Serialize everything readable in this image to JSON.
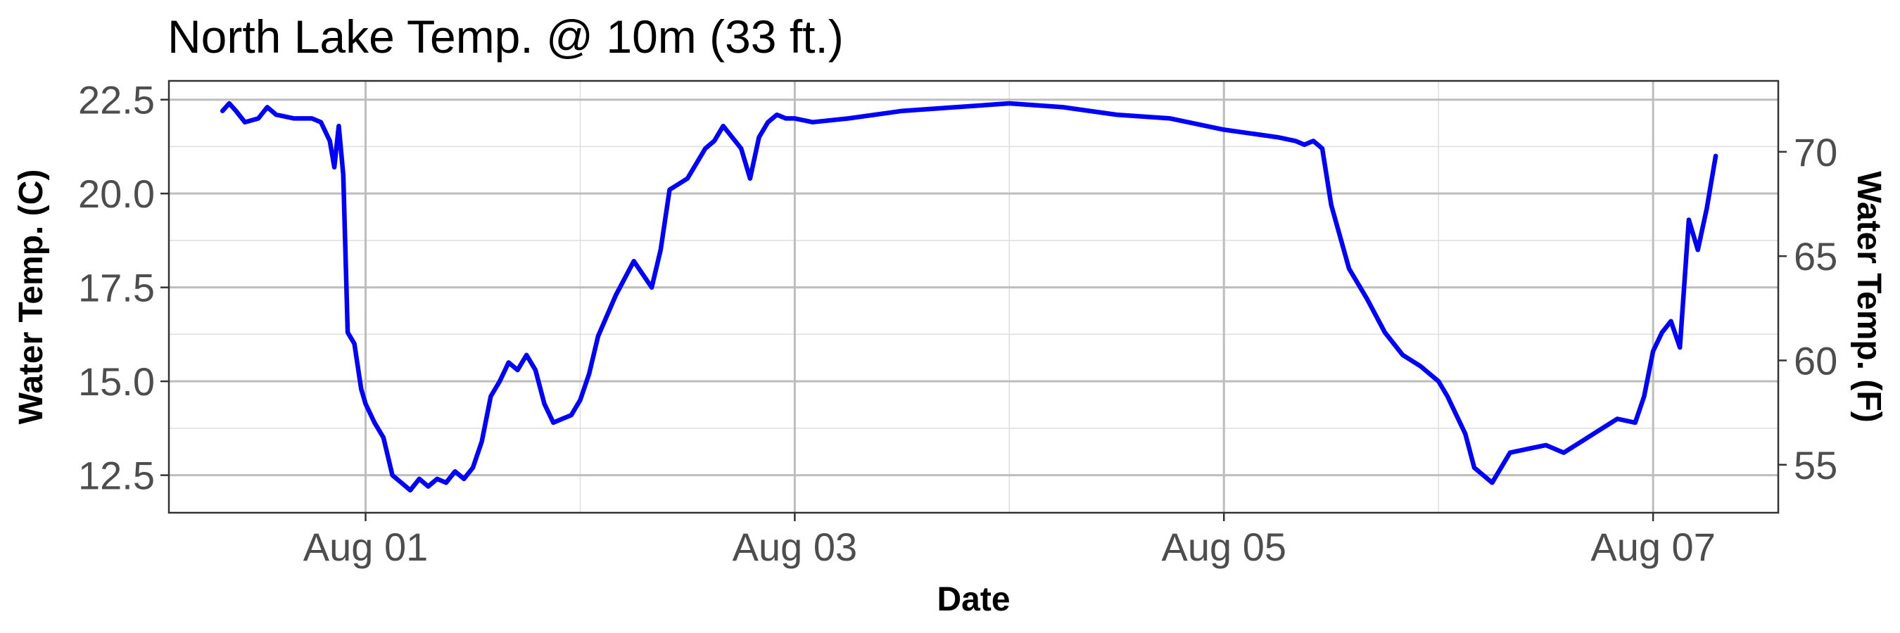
{
  "chart_data": {
    "type": "line",
    "title": "North Lake Temp. @ 10m (33 ft.)",
    "xlabel": "Date",
    "ylabel": "Water Temp. (C)",
    "y2label": "Water Temp. (F)",
    "x_ticks": [
      "Aug 01",
      "Aug 03",
      "Aug 05",
      "Aug 07"
    ],
    "xlim": [
      "2023-07-31T02:00",
      "2023-08-07T14:00"
    ],
    "ylim": [
      11.5,
      23.0
    ],
    "y_ticks": [
      12.5,
      15.0,
      17.5,
      20.0,
      22.5
    ],
    "y2_ticks": [
      55,
      60,
      65,
      70
    ],
    "grid": true,
    "line_color": "#0000ff",
    "series": [
      {
        "x": [
          "2023-07-31T08:00",
          "2023-07-31T08:45",
          "2023-07-31T09:30",
          "2023-07-31T10:30",
          "2023-07-31T12:00",
          "2023-07-31T13:00",
          "2023-07-31T14:00",
          "2023-07-31T16:00",
          "2023-07-31T18:00",
          "2023-07-31T19:00",
          "2023-07-31T20:00",
          "2023-07-31T20:30",
          "2023-07-31T21:00",
          "2023-07-31T21:30",
          "2023-07-31T22:00",
          "2023-07-31T22:45",
          "2023-07-31T23:30",
          "2023-08-01T00:00",
          "2023-08-01T01:00",
          "2023-08-01T02:00",
          "2023-08-01T03:00",
          "2023-08-01T04:00",
          "2023-08-01T05:00",
          "2023-08-01T06:00",
          "2023-08-01T07:00",
          "2023-08-01T08:00",
          "2023-08-01T09:00",
          "2023-08-01T10:00",
          "2023-08-01T11:00",
          "2023-08-01T12:00",
          "2023-08-01T13:00",
          "2023-08-01T14:00",
          "2023-08-01T15:00",
          "2023-08-01T16:00",
          "2023-08-01T17:00",
          "2023-08-01T18:00",
          "2023-08-01T19:00",
          "2023-08-01T20:00",
          "2023-08-01T21:00",
          "2023-08-01T22:00",
          "2023-08-01T23:00",
          "2023-08-02T00:00",
          "2023-08-02T01:00",
          "2023-08-02T02:00",
          "2023-08-02T04:00",
          "2023-08-02T06:00",
          "2023-08-02T08:00",
          "2023-08-02T09:00",
          "2023-08-02T10:00",
          "2023-08-02T12:00",
          "2023-08-02T14:00",
          "2023-08-02T15:00",
          "2023-08-02T16:00",
          "2023-08-02T18:00",
          "2023-08-02T19:00",
          "2023-08-02T20:00",
          "2023-08-02T21:00",
          "2023-08-02T22:00",
          "2023-08-02T23:00",
          "2023-08-03T00:00",
          "2023-08-03T02:00",
          "2023-08-03T06:00",
          "2023-08-03T12:00",
          "2023-08-03T18:00",
          "2023-08-04T00:00",
          "2023-08-04T06:00",
          "2023-08-04T12:00",
          "2023-08-04T18:00",
          "2023-08-05T00:00",
          "2023-08-05T06:00",
          "2023-08-05T08:00",
          "2023-08-05T09:00",
          "2023-08-05T10:00",
          "2023-08-05T11:00",
          "2023-08-05T12:00",
          "2023-08-05T14:00",
          "2023-08-05T16:00",
          "2023-08-05T18:00",
          "2023-08-05T20:00",
          "2023-08-05T22:00",
          "2023-08-06T00:00",
          "2023-08-06T01:00",
          "2023-08-06T02:00",
          "2023-08-06T03:00",
          "2023-08-06T04:00",
          "2023-08-06T06:00",
          "2023-08-06T08:00",
          "2023-08-06T10:00",
          "2023-08-06T12:00",
          "2023-08-06T14:00",
          "2023-08-06T16:00",
          "2023-08-06T18:00",
          "2023-08-06T20:00",
          "2023-08-06T22:00",
          "2023-08-06T23:00",
          "2023-08-07T00:00",
          "2023-08-07T01:00",
          "2023-08-07T02:00",
          "2023-08-07T03:00",
          "2023-08-07T04:00",
          "2023-08-07T05:00",
          "2023-08-07T06:00",
          "2023-08-07T07:00"
        ],
        "y": [
          22.2,
          22.4,
          22.2,
          21.9,
          22.0,
          22.3,
          22.1,
          22.0,
          22.0,
          21.9,
          21.4,
          20.7,
          21.8,
          20.5,
          16.3,
          16.0,
          14.8,
          14.4,
          13.9,
          13.5,
          12.5,
          12.3,
          12.1,
          12.4,
          12.2,
          12.4,
          12.3,
          12.6,
          12.4,
          12.7,
          13.4,
          14.6,
          15.0,
          15.5,
          15.3,
          15.7,
          15.3,
          14.4,
          13.9,
          14.0,
          14.1,
          14.5,
          15.2,
          16.2,
          17.3,
          18.2,
          17.5,
          18.5,
          20.1,
          20.4,
          21.2,
          21.4,
          21.8,
          21.2,
          20.4,
          21.5,
          21.9,
          22.1,
          22.0,
          22.0,
          21.9,
          22.0,
          22.2,
          22.3,
          22.4,
          22.3,
          22.1,
          22.0,
          21.7,
          21.5,
          21.4,
          21.3,
          21.4,
          21.2,
          19.7,
          18.0,
          17.2,
          16.3,
          15.7,
          15.4,
          15.0,
          14.6,
          14.1,
          13.6,
          12.7,
          12.3,
          13.1,
          13.2,
          13.3,
          13.1,
          13.4,
          13.7,
          14.0,
          13.9,
          14.6,
          15.8,
          16.3,
          16.6,
          15.9,
          19.3,
          18.5,
          19.6,
          21.0
        ]
      }
    ]
  }
}
